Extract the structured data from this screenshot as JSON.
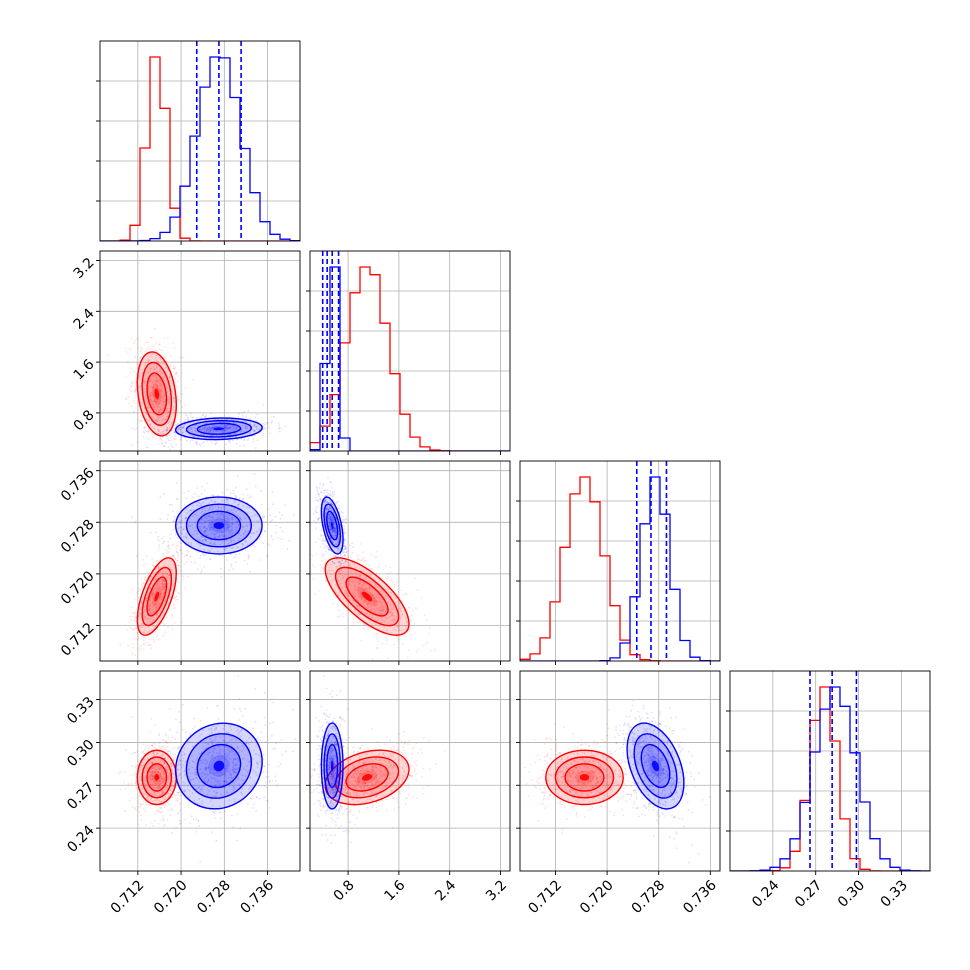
{
  "chart_data": {
    "type": "corner",
    "grid": true,
    "colors": {
      "red": "#ff0000",
      "blue": "#0000ff"
    },
    "parameters": [
      {
        "id": "p0",
        "range": [
          0.705,
          0.742
        ],
        "ticks": [
          "0.712",
          "0.720",
          "0.728",
          "0.736"
        ]
      },
      {
        "id": "p1",
        "range": [
          0.2,
          3.35
        ],
        "ticks": [
          "0.8",
          "1.6",
          "2.4",
          "3.2"
        ]
      },
      {
        "id": "p2",
        "range": [
          0.7065,
          0.7375
        ],
        "ticks": [
          "0.712",
          "0.720",
          "0.728",
          "0.736"
        ]
      },
      {
        "id": "p3",
        "range": [
          0.21,
          0.35
        ],
        "ticks": [
          "0.24",
          "0.27",
          "0.30",
          "0.33"
        ]
      }
    ],
    "series": [
      {
        "color": "red",
        "mean": [
          0.7155,
          1.1,
          0.7165,
          0.2755
        ],
        "sd": [
          0.0018,
          0.33,
          0.003,
          0.0095
        ],
        "corr": {
          "0-1": -0.25,
          "0-2": 0.6,
          "1-2": -0.7,
          "0-3": 0.0,
          "1-3": 0.3,
          "2-3": 0.0
        }
      },
      {
        "color": "blue",
        "mean": [
          0.727,
          0.55,
          0.7275,
          0.2835
        ],
        "sd": [
          0.004,
          0.085,
          0.0022,
          0.015
        ],
        "corr": {
          "0-1": 0.1,
          "0-2": 0.0,
          "1-2": -0.5,
          "0-3": 0.1,
          "1-3": 0.0,
          "2-3": -0.4
        }
      }
    ],
    "quantile_lines": {
      "color": "blue",
      "values": [
        [
          0.7229,
          0.727,
          0.7311
        ],
        [
          0.4,
          0.47,
          0.55,
          0.65
        ],
        [
          0.7246,
          0.7268,
          0.7292
        ],
        [
          0.266,
          0.2815,
          0.2985
        ]
      ]
    }
  }
}
